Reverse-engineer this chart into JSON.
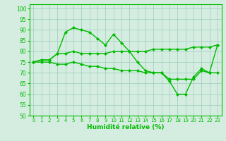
{
  "x": [
    0,
    1,
    2,
    3,
    4,
    5,
    6,
    7,
    8,
    9,
    10,
    11,
    12,
    13,
    14,
    15,
    16,
    17,
    18,
    19,
    20,
    21,
    22,
    23
  ],
  "line1": [
    75,
    76,
    76,
    79,
    89,
    91,
    90,
    89,
    86,
    83,
    88,
    84,
    80,
    75,
    71,
    70,
    70,
    66,
    60,
    60,
    68,
    72,
    70,
    83
  ],
  "line2": [
    75,
    76,
    76,
    79,
    79,
    80,
    79,
    79,
    79,
    79,
    80,
    80,
    80,
    80,
    80,
    81,
    81,
    81,
    81,
    81,
    82,
    82,
    82,
    83
  ],
  "line3": [
    75,
    75,
    75,
    74,
    74,
    75,
    74,
    73,
    73,
    72,
    72,
    71,
    71,
    71,
    70,
    70,
    70,
    67,
    67,
    67,
    67,
    71,
    70,
    70
  ],
  "line_color": "#00bb00",
  "bg_color": "#d5ede0",
  "grid_color": "#99ccbb",
  "xlabel": "Humidité relative (%)",
  "xlim": [
    -0.5,
    23.5
  ],
  "ylim": [
    50,
    102
  ],
  "yticks": [
    50,
    55,
    60,
    65,
    70,
    75,
    80,
    85,
    90,
    95,
    100
  ],
  "xticks": [
    0,
    1,
    2,
    3,
    4,
    5,
    6,
    7,
    8,
    9,
    10,
    11,
    12,
    13,
    14,
    15,
    16,
    17,
    18,
    19,
    20,
    21,
    22,
    23
  ],
  "marker": "D",
  "marker_size": 2.0,
  "line_width": 1.0
}
